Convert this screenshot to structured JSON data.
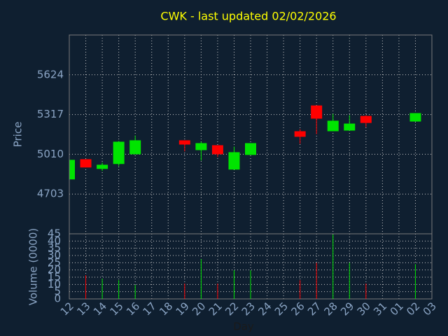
{
  "chart_data": {
    "type": "candlestick",
    "title": "CWK - last updated 02/02/2026",
    "xlabel": "Day",
    "ylabel": "Price",
    "volume_label": "Volume (0000)",
    "categories": [
      "12",
      "13",
      "14",
      "15",
      "16",
      "17",
      "18",
      "19",
      "20",
      "21",
      "22",
      "23",
      "24",
      "25",
      "26",
      "27",
      "28",
      "29",
      "30",
      "31",
      "01",
      "02",
      "03"
    ],
    "open": [
      4816,
      4972,
      4897,
      4935,
      5010,
      null,
      null,
      5118,
      5042,
      5080,
      4892,
      5005,
      null,
      null,
      5188,
      5387,
      5188,
      5193,
      5306,
      null,
      null,
      5263,
      null
    ],
    "high": [
      4967,
      4972,
      4945,
      5112,
      5155,
      null,
      null,
      5118,
      5107,
      5080,
      5069,
      5096,
      null,
      null,
      5204,
      5387,
      5322,
      5312,
      5312,
      null,
      null,
      5328,
      null
    ],
    "low": [
      4816,
      4908,
      4881,
      4918,
      5010,
      null,
      null,
      5032,
      4962,
      4988,
      4892,
      5005,
      null,
      null,
      5091,
      5166,
      5188,
      5193,
      5220,
      null,
      null,
      5263,
      null
    ],
    "close": [
      4967,
      4908,
      4929,
      5107,
      5118,
      null,
      null,
      5085,
      5096,
      5010,
      5026,
      5096,
      null,
      null,
      5145,
      5285,
      5269,
      5247,
      5252,
      null,
      null,
      5328,
      null
    ],
    "volume": [
      null,
      16.4,
      14,
      13,
      9.7,
      null,
      null,
      10.6,
      27.5,
      10.6,
      19.8,
      19.8,
      null,
      null,
      13,
      25,
      44.5,
      25,
      10.6,
      null,
      null,
      24,
      null
    ],
    "up_color": "#00e400",
    "down_color": "#ff0000",
    "ylim": [
      4396,
      5931
    ],
    "yticks": [
      4703,
      5010,
      5317,
      5624
    ],
    "vlim": [
      0,
      45
    ],
    "vticks": [
      0,
      5,
      10,
      15,
      20,
      25,
      30,
      35,
      40,
      45
    ],
    "grid": true
  }
}
